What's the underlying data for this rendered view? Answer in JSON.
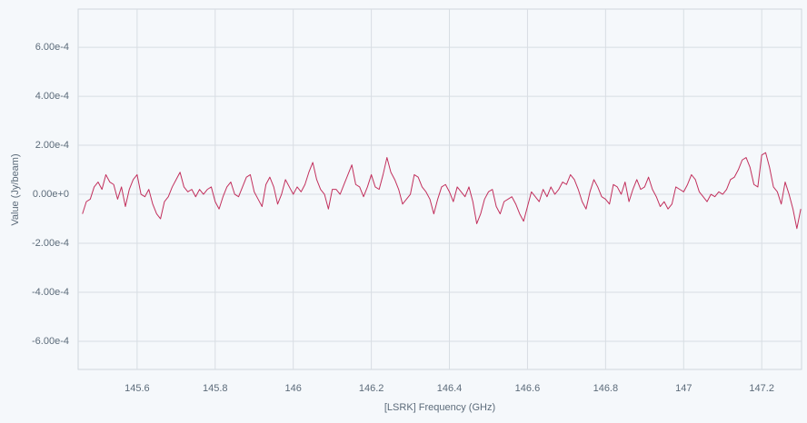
{
  "chart_data": {
    "type": "line",
    "xlabel": "[LSRK] Frequency (GHz)",
    "ylabel": "Value (Jy/beam)",
    "color": "#c2305d",
    "grid": true,
    "xlim": [
      145.449,
      147.302
    ],
    "ylim": [
      -0.000715,
      0.000756
    ],
    "xticks": [
      145.6,
      145.8,
      146,
      146.2,
      146.4,
      146.6,
      146.8,
      147,
      147.2
    ],
    "yticks": [
      {
        "value": -0.0006,
        "label": "-6.00e-4"
      },
      {
        "value": -0.0004,
        "label": "-4.00e-4"
      },
      {
        "value": -0.0002,
        "label": "-2.00e-4"
      },
      {
        "value": 0,
        "label": "0.00e+0"
      },
      {
        "value": 0.0002,
        "label": "2.00e-4"
      },
      {
        "value": 0.0004,
        "label": "4.00e-4"
      },
      {
        "value": 0.0006,
        "label": "6.00e-4"
      }
    ],
    "x": [
      145.46,
      145.47,
      145.48,
      145.49,
      145.5,
      145.51,
      145.52,
      145.53,
      145.54,
      145.55,
      145.56,
      145.57,
      145.58,
      145.59,
      145.6,
      145.61,
      145.62,
      145.63,
      145.64,
      145.65,
      145.66,
      145.67,
      145.68,
      145.69,
      145.7,
      145.71,
      145.72,
      145.73,
      145.74,
      145.75,
      145.76,
      145.77,
      145.78,
      145.79,
      145.8,
      145.81,
      145.82,
      145.83,
      145.84,
      145.85,
      145.86,
      145.87,
      145.88,
      145.89,
      145.9,
      145.91,
      145.92,
      145.93,
      145.94,
      145.95,
      145.96,
      145.97,
      145.98,
      145.99,
      146.0,
      146.01,
      146.02,
      146.03,
      146.04,
      146.05,
      146.06,
      146.07,
      146.08,
      146.09,
      146.1,
      146.11,
      146.12,
      146.13,
      146.14,
      146.15,
      146.16,
      146.17,
      146.18,
      146.19,
      146.2,
      146.21,
      146.22,
      146.23,
      146.24,
      146.25,
      146.26,
      146.27,
      146.28,
      146.29,
      146.3,
      146.31,
      146.32,
      146.33,
      146.34,
      146.35,
      146.36,
      146.37,
      146.38,
      146.39,
      146.4,
      146.41,
      146.42,
      146.43,
      146.44,
      146.45,
      146.46,
      146.47,
      146.48,
      146.49,
      146.5,
      146.51,
      146.52,
      146.53,
      146.54,
      146.55,
      146.56,
      146.57,
      146.58,
      146.59,
      146.6,
      146.61,
      146.62,
      146.63,
      146.64,
      146.65,
      146.66,
      146.67,
      146.68,
      146.69,
      146.7,
      146.71,
      146.72,
      146.73,
      146.74,
      146.75,
      146.76,
      146.77,
      146.78,
      146.79,
      146.8,
      146.81,
      146.82,
      146.83,
      146.84,
      146.85,
      146.86,
      146.87,
      146.88,
      146.89,
      146.9,
      146.91,
      146.92,
      146.93,
      146.94,
      146.95,
      146.96,
      146.97,
      146.98,
      146.99,
      147.0,
      147.01,
      147.02,
      147.03,
      147.04,
      147.05,
      147.06,
      147.07,
      147.08,
      147.09,
      147.1,
      147.11,
      147.12,
      147.13,
      147.14,
      147.15,
      147.16,
      147.17,
      147.18,
      147.19,
      147.2,
      147.21,
      147.22,
      147.23,
      147.24,
      147.25,
      147.26,
      147.27,
      147.28,
      147.29,
      147.3
    ],
    "values": [
      -8e-05,
      -3e-05,
      -2e-05,
      3e-05,
      5e-05,
      2e-05,
      8e-05,
      5e-05,
      4e-05,
      -2e-05,
      3e-05,
      -5e-05,
      2e-05,
      6e-05,
      8e-05,
      0.0,
      -1e-05,
      2e-05,
      -4e-05,
      -8e-05,
      -0.0001,
      -3e-05,
      -1e-05,
      3e-05,
      6e-05,
      9e-05,
      3e-05,
      1e-05,
      2e-05,
      -1e-05,
      2e-05,
      0.0,
      2e-05,
      3e-05,
      -3e-05,
      -6e-05,
      -1e-05,
      3e-05,
      5e-05,
      0.0,
      -1e-05,
      3e-05,
      7e-05,
      8e-05,
      1e-05,
      -2e-05,
      -5e-05,
      4e-05,
      7e-05,
      3e-05,
      -4e-05,
      0.0,
      6e-05,
      3e-05,
      0.0,
      3e-05,
      1e-05,
      4e-05,
      9e-05,
      0.00013,
      6e-05,
      2e-05,
      0.0,
      -6e-05,
      2e-05,
      2e-05,
      0.0,
      4e-05,
      8e-05,
      0.00012,
      4e-05,
      3e-05,
      -1e-05,
      3e-05,
      8e-05,
      3e-05,
      2e-05,
      8e-05,
      0.00015,
      9e-05,
      6e-05,
      2e-05,
      -4e-05,
      -2e-05,
      0.0,
      8e-05,
      7e-05,
      3e-05,
      1e-05,
      -2e-05,
      -8e-05,
      -2e-05,
      3e-05,
      4e-05,
      1e-05,
      -3e-05,
      3e-05,
      1e-05,
      -1e-05,
      3e-05,
      -3e-05,
      -0.00012,
      -8e-05,
      -2e-05,
      1e-05,
      2e-05,
      -5e-05,
      -8e-05,
      -3e-05,
      -2e-05,
      -1e-05,
      -4e-05,
      -8e-05,
      -0.00011,
      -5e-05,
      1e-05,
      -1e-05,
      -3e-05,
      2e-05,
      -1e-05,
      3e-05,
      0.0,
      2e-05,
      5e-05,
      4e-05,
      8e-05,
      6e-05,
      2e-05,
      -3e-05,
      -6e-05,
      1e-05,
      6e-05,
      3e-05,
      -1e-05,
      -2e-05,
      -4e-05,
      4e-05,
      3e-05,
      0.0,
      5e-05,
      -3e-05,
      2e-05,
      6e-05,
      2e-05,
      3e-05,
      7e-05,
      2e-05,
      -1e-05,
      -5e-05,
      -3e-05,
      -6e-05,
      -4e-05,
      3e-05,
      2e-05,
      1e-05,
      4e-05,
      8e-05,
      6e-05,
      1e-05,
      -1e-05,
      -3e-05,
      0.0,
      -1e-05,
      1e-05,
      0.0,
      2e-05,
      6e-05,
      7e-05,
      0.0001,
      0.00014,
      0.00015,
      0.00011,
      4e-05,
      3e-05,
      0.00016,
      0.00017,
      0.00011,
      3e-05,
      1e-05,
      -4e-05,
      5e-05,
      0.0,
      -6e-05,
      -0.00014,
      -6e-05
    ]
  }
}
